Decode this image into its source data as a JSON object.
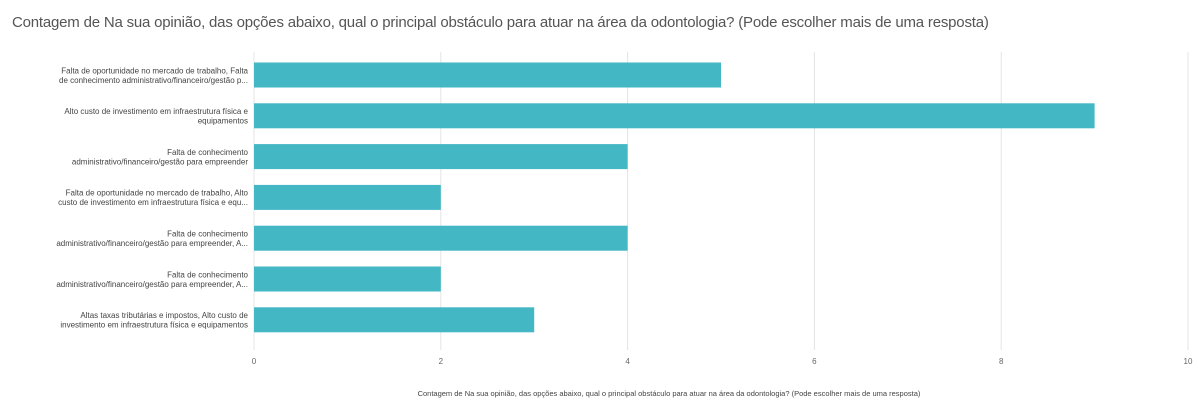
{
  "chart_data": {
    "type": "bar",
    "orientation": "horizontal",
    "title": "Contagem de Na sua opinião, das opções abaixo, qual o principal obstáculo para atuar na área da odontologia? (Pode escolher mais de uma resposta)",
    "xlabel": "Contagem de Na sua opinião, das opções abaixo, qual o principal obstáculo para atuar na área da odontologia? (Pode escolher mais de uma resposta)",
    "ylabel": "",
    "categories": [
      [
        "Falta de oportunidade no mercado de trabalho, Falta",
        "de conhecimento administrativo/financeiro/gestão p..."
      ],
      [
        "Alto custo de investimento em infraestrutura física e",
        "equipamentos"
      ],
      [
        "Falta de conhecimento",
        "administrativo/financeiro/gestão para empreender"
      ],
      [
        "Falta de oportunidade no mercado de trabalho, Alto",
        "custo de investimento em infraestrutura física e equ..."
      ],
      [
        "Falta de conhecimento",
        "administrativo/financeiro/gestão para empreender, A..."
      ],
      [
        "Falta de conhecimento",
        "administrativo/financeiro/gestão para empreender, A..."
      ],
      [
        "Altas taxas tributárias e impostos, Alto custo de",
        "investimento em infraestrutura física e equipamentos"
      ]
    ],
    "values": [
      5,
      9,
      4,
      2,
      4,
      2,
      3
    ],
    "xlim": [
      0,
      10
    ],
    "xticks": [
      0,
      2,
      4,
      6,
      8,
      10
    ],
    "grid": true,
    "legend": "none",
    "colors": {
      "bar": "#43b7c4",
      "grid": "#e4e4e4"
    }
  }
}
